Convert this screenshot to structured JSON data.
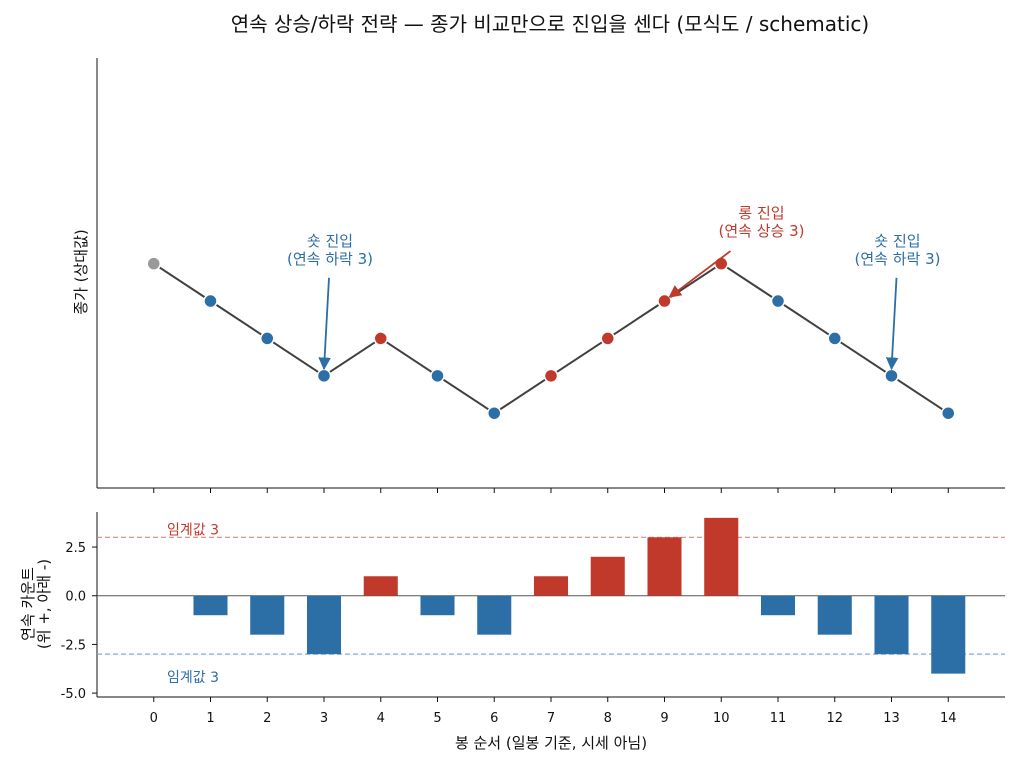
{
  "colors": {
    "up": "#c0392b",
    "down": "#2c6ea6",
    "neutral": "#999999",
    "line": "#404040",
    "threshold_up": "#e0837a",
    "threshold_down": "#8aa8cc"
  },
  "chart_data": [
    {
      "type": "line",
      "title": "연속 상승/하락 전략 — 종가 비교만으로 진입을 센다 (모식도 / schematic)",
      "ylabel": "종가 (상대값)",
      "x": [
        0,
        1,
        2,
        3,
        4,
        5,
        6,
        7,
        8,
        9,
        10,
        11,
        12,
        13,
        14
      ],
      "y": [
        0,
        -1,
        -2,
        -3,
        -2,
        -3,
        -4,
        -3,
        -2,
        -1,
        0,
        -1,
        -2,
        -3,
        -4
      ],
      "point_direction": [
        "neutral",
        "down",
        "down",
        "down",
        "up",
        "down",
        "down",
        "up",
        "up",
        "up",
        "up",
        "down",
        "down",
        "down",
        "down"
      ],
      "xlim": [
        -1.0,
        15.0
      ],
      "ylim": [
        -6.0,
        5.5
      ],
      "annotations": [
        {
          "line1": "숏 진입",
          "line2": "(연속 하락 3)",
          "x": 3,
          "y": -3,
          "dir": "down"
        },
        {
          "line1": "롱 진입",
          "line2": "(연속 상승 3)",
          "x": 9,
          "y": -1,
          "dir": "up"
        },
        {
          "line1": "숏 진입",
          "line2": "(연속 하락 3)",
          "x": 13,
          "y": -3,
          "dir": "down"
        }
      ]
    },
    {
      "type": "bar",
      "ylabel_line1": "연속 카운트",
      "ylabel_line2": "(위 +, 아래 -)",
      "xlabel": "봉 순서 (일봉 기준, 시세 아님)",
      "categories": [
        "0",
        "1",
        "2",
        "3",
        "4",
        "5",
        "6",
        "7",
        "8",
        "9",
        "10",
        "11",
        "12",
        "13",
        "14"
      ],
      "values": [
        0,
        -1,
        -2,
        -3,
        1,
        -1,
        -2,
        1,
        2,
        3,
        4,
        -1,
        -2,
        -3,
        -4
      ],
      "ylim": [
        -5.2,
        4.3
      ],
      "yticks": [
        -5.0,
        -2.5,
        0.0,
        2.5
      ],
      "ytick_labels": [
        "-5.0",
        "-2.5",
        "0.0",
        "2.5"
      ],
      "thresholds": [
        {
          "value": 3,
          "label": "임계값 3",
          "dir": "up"
        },
        {
          "value": -3,
          "label": "임계값 3",
          "dir": "down"
        }
      ]
    }
  ]
}
